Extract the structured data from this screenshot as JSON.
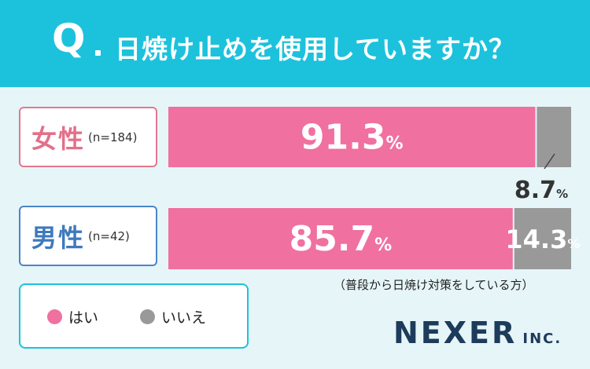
{
  "header": {
    "q_mark": "Q",
    "question": "日焼け止めを使用していますか？"
  },
  "rows": [
    {
      "label": "女性",
      "n": "(n=184)"
    },
    {
      "label": "男性",
      "n": "(n=42)"
    }
  ],
  "note": "（普段から日焼け対策をしている方）",
  "legend": [
    {
      "label": "はい",
      "color": "#f070a0"
    },
    {
      "label": "いいえ",
      "color": "#999999"
    }
  ],
  "brand": {
    "main": "NEXER",
    "sub": "INC."
  },
  "chart_data": {
    "type": "bar",
    "orientation": "horizontal",
    "stacked": true,
    "title": "日焼け止めを使用していますか？",
    "categories": [
      "女性 (n=184)",
      "男性 (n=42)"
    ],
    "series": [
      {
        "name": "はい",
        "values": [
          91.3,
          85.7
        ],
        "color": "#f070a0"
      },
      {
        "name": "いいえ",
        "values": [
          8.7,
          14.3
        ],
        "color": "#999999"
      }
    ],
    "unit": "%",
    "xlim": [
      0,
      100
    ]
  }
}
